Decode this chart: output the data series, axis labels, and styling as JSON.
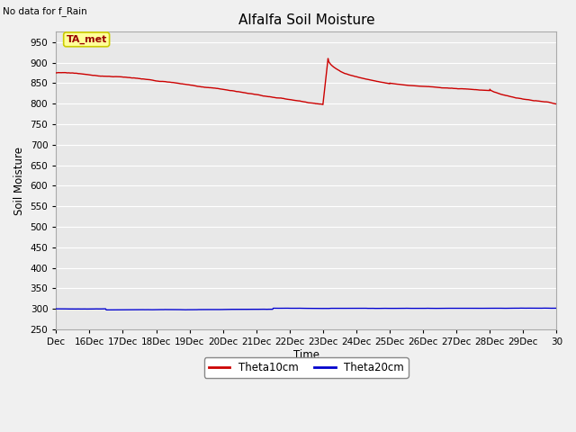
{
  "title": "Alfalfa Soil Moisture",
  "no_data_text": "No data for f_Rain",
  "xlabel": "Time",
  "ylabel": "Soil Moisture",
  "ylim": [
    250,
    975
  ],
  "yticks": [
    250,
    300,
    350,
    400,
    450,
    500,
    550,
    600,
    650,
    700,
    750,
    800,
    850,
    900,
    950
  ],
  "xtick_labels": [
    "Dec",
    "16Dec",
    "17Dec",
    "18Dec",
    "19Dec",
    "20Dec",
    "21Dec",
    "22Dec",
    "23Dec",
    "24Dec",
    "25Dec",
    "26Dec",
    "27Dec",
    "28Dec",
    "29Dec",
    "30"
  ],
  "fig_bg_color": "#f0f0f0",
  "plot_bg_color": "#e8e8e8",
  "grid_color": "#ffffff",
  "legend_label1": "Theta10cm",
  "legend_label2": "Theta20cm",
  "legend_color1": "#cc0000",
  "legend_color2": "#0000cc",
  "annotation_text": "TA_met",
  "annotation_bg": "#ffff99",
  "annotation_border": "#cccc00"
}
